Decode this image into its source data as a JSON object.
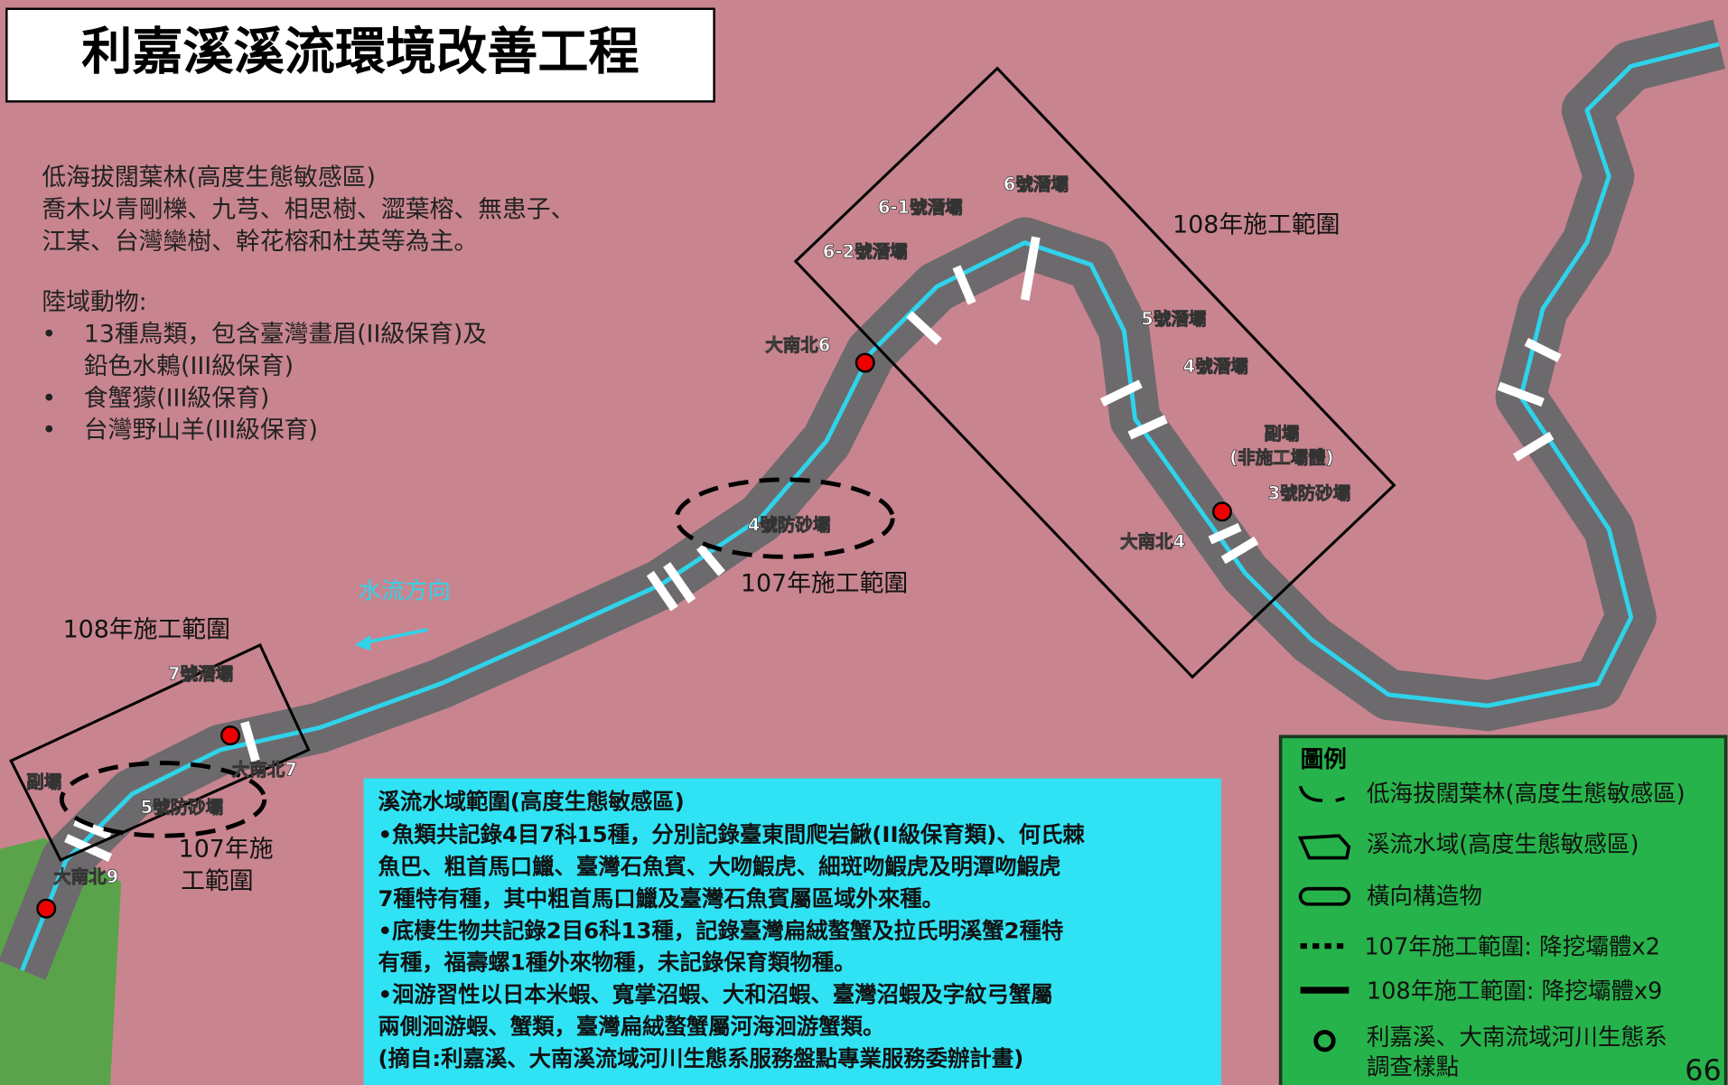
{
  "title": "利嘉溪溪流環境改善工程",
  "habitat": {
    "heading": "低海拔闊葉林(高度生態敏感區)",
    "lines": [
      "喬木以青剛櫟、九芎、相思樹、澀葉榕、無患子、",
      "江某、台灣欒樹、幹花榕和杜英等為主。"
    ]
  },
  "fauna": {
    "heading": "陸域動物:",
    "items": [
      [
        "13種鳥類，包含臺灣畫眉(II級保育)及",
        "鉛色水鶇(III級保育)"
      ],
      [
        "食蟹獴(III級保育)"
      ],
      [
        "台灣野山羊(III級保育)"
      ]
    ]
  },
  "map_labels": [
    "6號潛壩",
    "6-1號潛壩",
    "6-2號潛壩",
    "108年施工範圍",
    "大南北6",
    "5號潛壩",
    "4號潛壩",
    "副壩",
    "(非施工壩體)",
    "3號防砂壩",
    "大南北4",
    "4號防砂壩",
    "107年施工範圍",
    "水流方向",
    "108年施工範圍",
    "7號潛壩",
    "大南北7",
    "副壩",
    "5號防砂壩",
    "107年施",
    "工範圍",
    "大南北9"
  ],
  "aquatic": {
    "heading": "溪流水域範圍(高度生態敏感區)",
    "lines": [
      "•魚類共記錄4目7科15種，分別記錄臺東間爬岩鰍(II級保育類)、何氏棘",
      "魚巴、粗首馬口鱲、臺灣石魚賓、大吻鰕虎、細斑吻鰕虎及明潭吻鰕虎",
      "7種特有種，其中粗首馬口鱲及臺灣石魚賓屬區域外來種。",
      "•底棲生物共記錄2目6科13種，記錄臺灣扁絨螯蟹及拉氏明溪蟹2種特",
      "有種，福壽螺1種外來物種，未記錄保育類物種。",
      "•洄游習性以日本米蝦、寬掌沼蝦、大和沼蝦、臺灣沼蝦及字紋弓蟹屬",
      "兩側洄游蝦、蟹類，臺灣扁絨螯蟹屬河海洄游蟹類。",
      " (摘自:利嘉溪、大南溪流域河川生態系服務盤點專業服務委辦計畫)"
    ]
  },
  "legend": {
    "title": "圖例",
    "items": [
      "低海拔闊葉林(高度生態敏感區)",
      "溪流水域(高度生態敏感區)",
      "橫向構造物",
      "107年施工範圍: 降挖壩體x2",
      "108年施工範圍: 降挖壩體x9",
      [
        "利嘉溪、大南流域河川生態系",
        "調查樣點"
      ]
    ]
  },
  "page_number": "66"
}
